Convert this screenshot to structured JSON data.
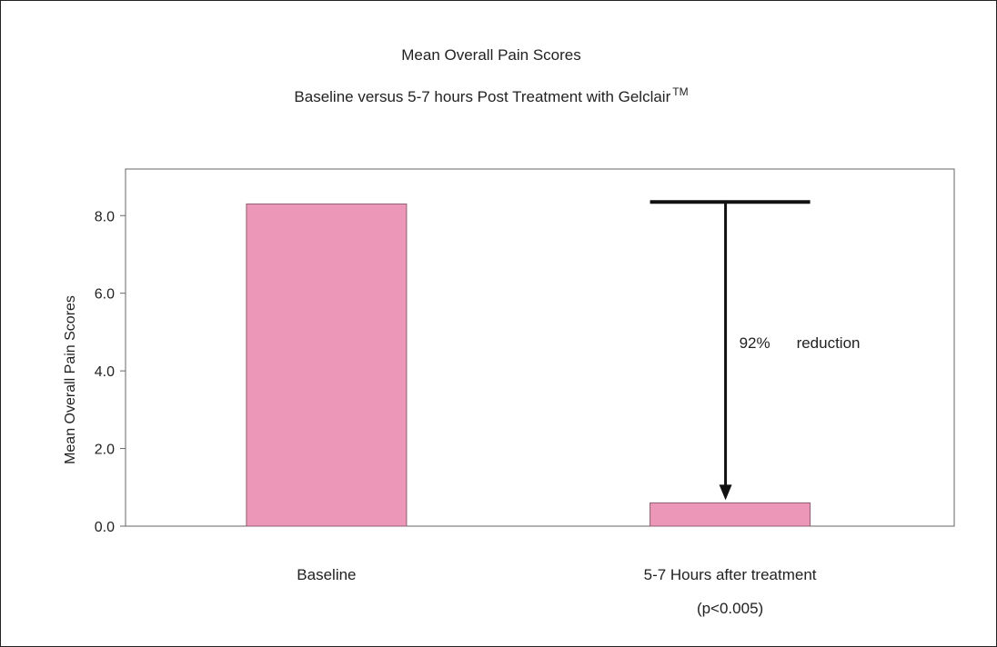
{
  "chart_data": {
    "type": "bar",
    "title": "Mean Overall Pain Scores",
    "subtitle": "Baseline versus 5-7 hours Post Treatment with Gelclair",
    "subtitle_superscript": "TM",
    "ylabel": "Mean Overall Pain Scores",
    "xlabel": "",
    "categories": [
      "Baseline",
      "5-7 Hours after treatment"
    ],
    "category_note": "(p<0.005)",
    "values": [
      8.3,
      0.6
    ],
    "ylim": [
      0,
      9.2
    ],
    "yticks": [
      0,
      2,
      4,
      6,
      8
    ],
    "ytick_labels": [
      "0.0",
      "2.0",
      "4.0",
      "6.0",
      "8.0"
    ],
    "grid": false,
    "bar_color": "#ec97b8",
    "bar_edge_color": "#8e6070",
    "annotation": {
      "percent": "92%",
      "word": "reduction",
      "from_value": 8.35,
      "to_value": 0.6
    }
  }
}
